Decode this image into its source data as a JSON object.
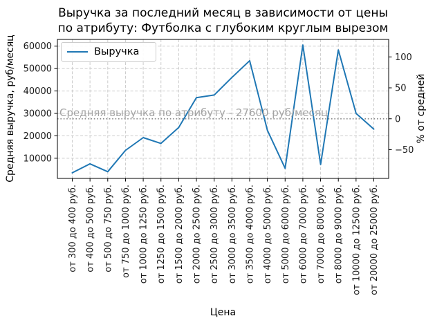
{
  "chart_data": {
    "type": "line",
    "title": "Выручка за последний месяц в зависимости от цены\nпо атрибуту: Футболка с глубоким круглым вырезом",
    "xlabel": "Цена",
    "ylabel_left": "Средняя выручка, руб/месяц",
    "ylabel_right": "% от средней",
    "grid": true,
    "legend_position": "upper left",
    "categories": [
      "от 300 до 400 руб.",
      "от 400 до 500 руб.",
      "от 500 до 750 руб.",
      "от 750 до 1000 руб.",
      "от 1000 до 1250 руб.",
      "от 1250 до 1500 руб.",
      "от 1500 до 2000 руб.",
      "от 2000 до 2500 руб.",
      "от 2500 до 3000 руб.",
      "от 3000 до 3500 руб.",
      "от 3500 до 4000 руб.",
      "от 4000 до 5000 руб.",
      "от 5000 до 6000 руб.",
      "от 6000 до 7000 руб.",
      "от 7000 до 8000 руб.",
      "от 8000 до 9000 руб.",
      "от 10000 до 12500 руб.",
      "от 20000 до 25000 руб."
    ],
    "series": [
      {
        "name": "Выручка",
        "values": [
          3500,
          7500,
          4000,
          13500,
          19200,
          16600,
          23700,
          37000,
          38200,
          46000,
          53500,
          22500,
          5500,
          60500,
          7200,
          58300,
          30000,
          23000
        ]
      }
    ],
    "mean_line": {
      "value": 27600,
      "label": "Средняя выручка по атрибуту - 27600 руб/месяц"
    },
    "left_ticks": [
      10000,
      20000,
      30000,
      40000,
      50000,
      60000
    ],
    "right_ticks": [
      -50,
      0,
      50,
      100
    ],
    "ylim": [
      1000,
      63000
    ],
    "colors": {
      "series": "#1f77b4",
      "grid": "#cbcbcb",
      "mean_line": "#8a8a8a",
      "annotation": "#a3a3a3",
      "text": "#1a1a1a",
      "spine": "#000000"
    }
  }
}
